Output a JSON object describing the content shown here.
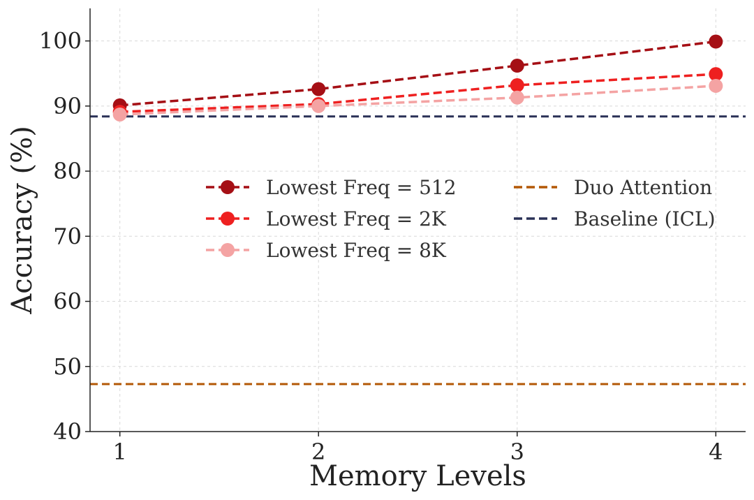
{
  "chart_data": {
    "type": "line",
    "title": "",
    "xlabel": "Memory Levels",
    "ylabel": "Accuracy (%)",
    "x": [
      1,
      2,
      3,
      4
    ],
    "xticks": [
      "1",
      "2",
      "3",
      "4"
    ],
    "yticks": [
      "40",
      "50",
      "60",
      "70",
      "80",
      "90",
      "100"
    ],
    "xlim": [
      0.85,
      4.15
    ],
    "ylim": [
      40,
      105
    ],
    "grid": true,
    "legend_position": "center",
    "series": [
      {
        "name": "Lowest Freq = 512",
        "values": [
          90.1,
          92.6,
          96.2,
          99.9
        ],
        "color": "#a50f15",
        "marker": true
      },
      {
        "name": "Lowest Freq = 2K",
        "values": [
          89.1,
          90.3,
          93.2,
          94.9
        ],
        "color": "#ee2020",
        "marker": true
      },
      {
        "name": "Lowest Freq = 8K",
        "values": [
          88.7,
          90.0,
          91.3,
          93.1
        ],
        "color": "#f4a3a3",
        "marker": true
      }
    ],
    "reference_lines": [
      {
        "name": "Duo Attention",
        "value": 47.3,
        "color": "#b35806"
      },
      {
        "name": "Baseline (ICL)",
        "value": 88.4,
        "color": "#2a3157"
      }
    ]
  }
}
